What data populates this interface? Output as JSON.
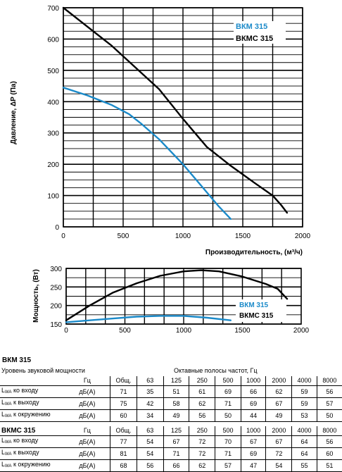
{
  "chart_data": [
    {
      "type": "line",
      "ylabel": "Давление, ΔP (Па)",
      "xlabel": "Производительность, (м³/ч)",
      "xlim": [
        0,
        2000
      ],
      "ylim": [
        0,
        700
      ],
      "x_ticks": [
        "0",
        "500",
        "1000",
        "1500",
        "2000"
      ],
      "y_ticks": [
        "0",
        "100",
        "200",
        "300",
        "400",
        "500",
        "600",
        "700"
      ],
      "grid": true,
      "legend": "top-right",
      "series": [
        {
          "name": "ВКМ 315",
          "color": "#1b8ac9",
          "x": [
            0,
            200,
            400,
            550,
            650,
            800,
            1000,
            1200,
            1300,
            1400
          ],
          "y": [
            445,
            420,
            390,
            360,
            330,
            280,
            200,
            110,
            65,
            25
          ]
        },
        {
          "name": "ВКМС 315",
          "color": "#000000",
          "x": [
            0,
            200,
            400,
            600,
            800,
            1000,
            1200,
            1400,
            1600,
            1750,
            1820,
            1870
          ],
          "y": [
            700,
            640,
            580,
            510,
            440,
            345,
            255,
            195,
            140,
            100,
            70,
            45
          ]
        }
      ]
    },
    {
      "type": "line",
      "ylabel": "Мощность, (Вт)",
      "xlim": [
        0,
        2000
      ],
      "ylim": [
        150,
        300
      ],
      "x_ticks": [
        "0",
        "500",
        "1000",
        "1500",
        "2000"
      ],
      "y_ticks": [
        "150",
        "200",
        "250",
        "300"
      ],
      "grid": true,
      "legend": "bottom-right",
      "series": [
        {
          "name": "ВКМ 315",
          "color": "#1b8ac9",
          "x": [
            0,
            200,
            400,
            600,
            800,
            1000,
            1200,
            1400
          ],
          "y": [
            155,
            160,
            165,
            170,
            172,
            172,
            167,
            160
          ]
        },
        {
          "name": "ВКМС 315",
          "color": "#000000",
          "x": [
            0,
            200,
            400,
            600,
            800,
            1000,
            1150,
            1300,
            1500,
            1700,
            1800,
            1880
          ],
          "y": [
            160,
            200,
            235,
            260,
            280,
            292,
            295,
            292,
            278,
            258,
            245,
            218
          ]
        }
      ]
    }
  ],
  "tables": [
    {
      "title": "ВКМ 315",
      "subtitle": "Уровень звуковой мощности",
      "bands_title": "Октавные полосы частот, Гц",
      "header": [
        "Гц",
        "Общ.",
        "63",
        "125",
        "250",
        "500",
        "1000",
        "2000",
        "4000",
        "8000"
      ],
      "rows": [
        {
          "label": "ко входу",
          "unit": "дБ(А)",
          "values": [
            "71",
            "35",
            "51",
            "61",
            "69",
            "66",
            "62",
            "59",
            "56"
          ]
        },
        {
          "label": "к выходу",
          "unit": "дБ(А)",
          "values": [
            "75",
            "42",
            "58",
            "62",
            "71",
            "69",
            "67",
            "59",
            "57"
          ]
        },
        {
          "label": "к окружению",
          "unit": "дБ(А)",
          "values": [
            "60",
            "34",
            "49",
            "56",
            "50",
            "44",
            "49",
            "53",
            "50"
          ]
        }
      ]
    },
    {
      "title": "ВКМС 315",
      "header": [
        "Гц",
        "Общ.",
        "63",
        "125",
        "250",
        "500",
        "1000",
        "2000",
        "4000",
        "8000"
      ],
      "rows": [
        {
          "label": "ко входу",
          "unit": "дБ(А)",
          "values": [
            "77",
            "54",
            "67",
            "72",
            "70",
            "67",
            "67",
            "64",
            "56"
          ]
        },
        {
          "label": "к выходу",
          "unit": "дБ(А)",
          "values": [
            "81",
            "54",
            "71",
            "72",
            "71",
            "69",
            "72",
            "64",
            "60"
          ]
        },
        {
          "label": "к окружению",
          "unit": "дБ(А)",
          "values": [
            "68",
            "56",
            "66",
            "62",
            "57",
            "47",
            "54",
            "55",
            "51"
          ]
        }
      ]
    }
  ],
  "lwa_prefix": "L",
  "lwa_sub": "WA"
}
